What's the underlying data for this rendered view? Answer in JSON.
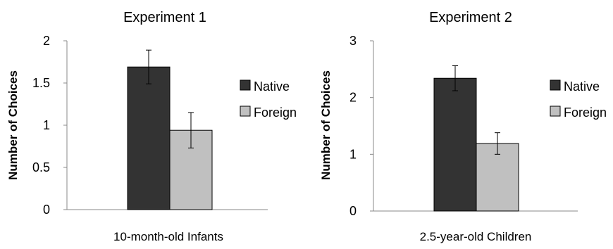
{
  "chart_data": [
    {
      "type": "bar",
      "title": "Experiment 1",
      "xlabel": "10-month-old Infants",
      "ylabel": "Number of Choices",
      "ylim": [
        0,
        2
      ],
      "yticks": [
        "0",
        "0.5",
        "1",
        "1.5",
        "2"
      ],
      "grid": false,
      "legend_position": "right",
      "series": [
        {
          "name": "Native",
          "values": [
            1.69
          ],
          "error": [
            0.2
          ],
          "color": "#333333"
        },
        {
          "name": "Foreign",
          "values": [
            0.94
          ],
          "error": [
            0.21
          ],
          "color": "#c0c0c0"
        }
      ]
    },
    {
      "type": "bar",
      "title": "Experiment 2",
      "xlabel": "2.5-year-old Children",
      "ylabel": "Number of Choices",
      "ylim": [
        0,
        3
      ],
      "yticks": [
        "0",
        "1",
        "2",
        "3"
      ],
      "grid": false,
      "legend_position": "right",
      "series": [
        {
          "name": "Native",
          "values": [
            2.34
          ],
          "error": [
            0.22
          ],
          "color": "#333333"
        },
        {
          "name": "Foreign",
          "values": [
            1.19
          ],
          "error": [
            0.19
          ],
          "color": "#c0c0c0"
        }
      ]
    }
  ]
}
